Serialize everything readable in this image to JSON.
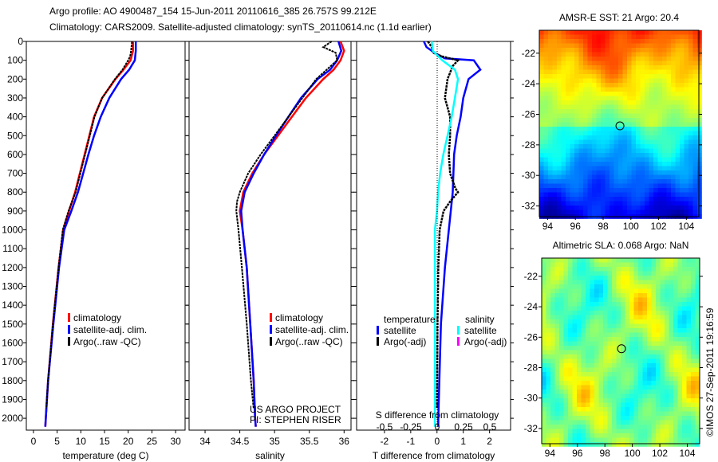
{
  "title": {
    "line1": "Argo profile: AO 4900487_154 15-Jun-2011 20110616_385 26.757S 99.212E",
    "line2": "Climatology: CARS2009. Satellite-adjusted climatology: synTS_20110614.nc (1.1d earlier)"
  },
  "colors": {
    "clim": "#ff0000",
    "sat": "#0000ff",
    "argo": "#000000",
    "sal_sat": "#00ffff",
    "sal_argo": "#ff00ff"
  },
  "chart_data": [
    {
      "type": "line",
      "name": "temperature",
      "xlabel": "temperature (deg C)",
      "xlim": [
        -1.5,
        32
      ],
      "ylim": [
        0,
        2063
      ],
      "xticks": [
        0,
        5,
        10,
        15,
        20,
        25,
        30
      ],
      "yticks": [
        0,
        100,
        200,
        300,
        400,
        500,
        600,
        700,
        800,
        900,
        1000,
        1100,
        1200,
        1300,
        1400,
        1500,
        1600,
        1700,
        1800,
        1900,
        2000
      ],
      "legend": [
        "climatology",
        "satellite-adj. clim.",
        "Argo(..raw -QC)"
      ],
      "series": [
        {
          "name": "climatology",
          "depth": [
            0,
            50,
            100,
            150,
            200,
            300,
            400,
            500,
            600,
            700,
            800,
            900,
            1000,
            1200,
            1500,
            1800,
            2000,
            2045
          ],
          "values": [
            21,
            21,
            20.5,
            19,
            17.3,
            14.5,
            12.8,
            11.8,
            10.8,
            9.8,
            8.8,
            7.5,
            6.3,
            5.3,
            4.1,
            3.1,
            2.6,
            2.5
          ]
        },
        {
          "name": "satellite-adj. clim.",
          "depth": [
            0,
            50,
            100,
            150,
            200,
            300,
            400,
            500,
            600,
            700,
            800,
            900,
            1000,
            1200,
            1500,
            1800,
            2000,
            2045
          ],
          "values": [
            21.6,
            21.6,
            21.4,
            20.2,
            18.5,
            16,
            14.2,
            12.8,
            11.6,
            10.5,
            9.4,
            8,
            6.5,
            5.4,
            4.2,
            3.1,
            2.6,
            2.5
          ]
        },
        {
          "name": "Argo(..raw -QC)",
          "depth": [
            0,
            50,
            80,
            100,
            150,
            200,
            300,
            400,
            500,
            600,
            700,
            800,
            900,
            1000,
            1200,
            1500,
            1800,
            1950
          ],
          "values": [
            20.8,
            20.6,
            20.4,
            20,
            18.8,
            17.2,
            14.5,
            12.9,
            11.9,
            10.9,
            9.9,
            8.9,
            7.4,
            6.2,
            5.3,
            4.1,
            3.1,
            2.7
          ]
        }
      ]
    },
    {
      "type": "line",
      "name": "salinity",
      "xlabel": "salinity",
      "xlim": [
        33.77,
        36.1
      ],
      "ylim": [
        0,
        2063
      ],
      "xticks": [
        34,
        34.5,
        35,
        35.5,
        36
      ],
      "legend": [
        "climatology",
        "satellite-adj. clim.",
        "Argo(..raw -QC)"
      ],
      "annotation": [
        "US ARGO PROJECT",
        "PI: STEPHEN RISER"
      ],
      "series": [
        {
          "name": "climatology",
          "depth": [
            0,
            50,
            100,
            150,
            200,
            300,
            400,
            500,
            600,
            700,
            800,
            900,
            1000,
            1200,
            1500,
            1800,
            2000,
            2045
          ],
          "values": [
            35.95,
            36.0,
            35.95,
            35.85,
            35.7,
            35.45,
            35.25,
            35.05,
            34.85,
            34.68,
            34.55,
            34.5,
            34.54,
            34.6,
            34.65,
            34.7,
            34.72,
            34.73
          ]
        },
        {
          "name": "satellite-adj. clim.",
          "depth": [
            0,
            50,
            100,
            150,
            200,
            300,
            400,
            500,
            600,
            700,
            800,
            900,
            1000,
            1200,
            1500,
            1800,
            2000,
            2045
          ],
          "values": [
            35.92,
            35.96,
            35.9,
            35.8,
            35.62,
            35.38,
            35.2,
            35.02,
            34.85,
            34.7,
            34.57,
            34.52,
            34.54,
            34.6,
            34.65,
            34.7,
            34.72,
            34.73
          ]
        },
        {
          "name": "Argo(..raw -QC)",
          "depth": [
            0,
            30,
            60,
            100,
            150,
            200,
            300,
            400,
            500,
            600,
            700,
            800,
            850,
            900,
            1000,
            1200,
            1500,
            1800,
            1950
          ],
          "values": [
            35.82,
            35.7,
            35.88,
            35.9,
            35.75,
            35.6,
            35.4,
            35.2,
            35.0,
            34.8,
            34.62,
            34.5,
            34.46,
            34.45,
            34.48,
            34.53,
            34.6,
            34.66,
            34.7
          ]
        }
      ]
    },
    {
      "type": "line",
      "name": "difference",
      "xlabel": "T difference from climatology",
      "x2label": "S difference from climatology",
      "xlim": [
        -3.06,
        2.8
      ],
      "ylim": [
        0,
        2063
      ],
      "xticks": [
        -2,
        -1,
        0,
        1,
        2
      ],
      "x2ticks": [
        -0.5,
        -0.25,
        0,
        0.25,
        0.5
      ],
      "legend": {
        "temperature": "temperature",
        "salinity": "salinity",
        "items": [
          "satellite",
          "Argo(-adj)",
          "satellite",
          "Argo(-adj)"
        ]
      },
      "series": [
        {
          "name": "temperature satellite",
          "depth": [
            0,
            30,
            60,
            90,
            100,
            150,
            200,
            300,
            400,
            500,
            600,
            800,
            1000,
            1200,
            1500,
            2000,
            2045
          ],
          "values": [
            -0.5,
            -0.4,
            -0.1,
            0.3,
            1.4,
            1.65,
            1.2,
            1.0,
            0.9,
            0.75,
            0.65,
            0.6,
            0.45,
            0.3,
            0.15,
            0.05,
            0.05
          ]
        },
        {
          "name": "temperature Argo(-adj)",
          "depth": [
            0,
            30,
            60,
            80,
            100,
            130,
            200,
            300,
            400,
            500,
            600,
            700,
            780,
            800,
            850,
            900,
            1000,
            1200,
            1500,
            1950
          ],
          "values": [
            -0.35,
            -0.2,
            -0.15,
            0.2,
            0.8,
            0.6,
            0.4,
            0.3,
            0.5,
            0.5,
            0.45,
            0.5,
            0.7,
            0.8,
            0.5,
            0.25,
            0.1,
            0.05,
            0.02,
            0
          ]
        },
        {
          "name": "salinity satellite",
          "depth": [
            0,
            50,
            100,
            150,
            200,
            300,
            400,
            500,
            600,
            700,
            800,
            900,
            1000,
            1200,
            1500,
            2000,
            2045
          ],
          "values": [
            -0.05,
            -0.04,
            0.05,
            0.17,
            0.2,
            0.17,
            0.14,
            0.1,
            0.06,
            0.03,
            0.01,
            0,
            -0.02,
            -0.02,
            -0.02,
            -0.02,
            -0.02
          ]
        }
      ]
    }
  ],
  "maps": [
    {
      "title": "AMSR-E SST: 21 Argo: 20.4",
      "xticks": [
        94,
        96,
        98,
        100,
        102,
        104
      ],
      "yticks": [
        -22,
        -24,
        -26,
        -28,
        -30,
        -32
      ]
    },
    {
      "title": "Altimetric SLA: 0.068 Argo: NaN",
      "xticks": [
        94,
        96,
        98,
        100,
        102,
        104
      ],
      "yticks": [
        -22,
        -24,
        -26,
        -28,
        -30,
        -32
      ]
    }
  ],
  "argo_position": {
    "lon": 99.212,
    "lat": -26.757
  },
  "watermark": "©IMOS 27-Sep-2011 19:16:59"
}
